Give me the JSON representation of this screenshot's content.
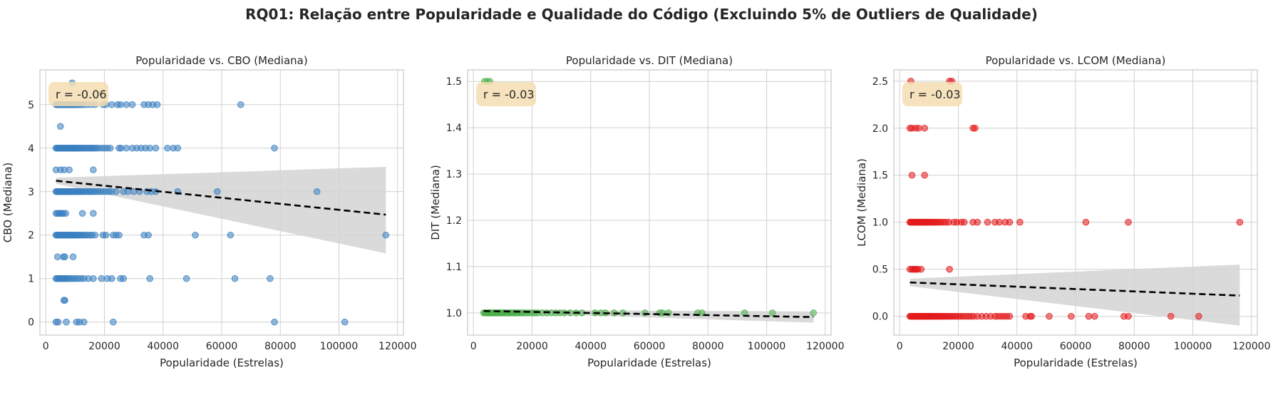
{
  "figure": {
    "suptitle": "RQ01: Relação entre Popularidade e Qualidade do Código (Excluindo 5% de Outliers de Qualidade)"
  },
  "colors": {
    "cbo": "#3a7fc1",
    "dit": "#4daf4a",
    "lcom": "#e41a1c",
    "trend": "#000000",
    "ci_band": "#d3d3d3",
    "annotation_box": "#f5deb3",
    "grid": "#d0d0d0",
    "spine": "#c8c8c8"
  },
  "chart_data": [
    {
      "type": "scatter",
      "title": "Popularidade vs. CBO (Mediana)",
      "xlabel": "Popularidade (Estrelas)",
      "ylabel": "CBO (Mediana)",
      "xlim": [
        -2000,
        122000
      ],
      "ylim": [
        -0.3,
        5.8
      ],
      "xticks": [
        0,
        20000,
        40000,
        60000,
        80000,
        100000,
        120000
      ],
      "yticks": [
        0,
        1,
        2,
        3,
        4,
        5
      ],
      "ytick_labels": [
        "0",
        "1",
        "2",
        "3",
        "4",
        "5"
      ],
      "annotation": "r = -0.06",
      "color": "#3a7fc1",
      "grid": true,
      "trend": {
        "x": [
          3500,
          116000
        ],
        "y": [
          3.25,
          2.47
        ]
      },
      "ci_band": {
        "x": [
          3500,
          116000
        ],
        "upper": [
          3.32,
          3.57
        ],
        "lower": [
          3.18,
          1.58
        ]
      },
      "rows": [
        {
          "y": 5,
          "x": [
            3500,
            3800,
            4100,
            4400,
            4700,
            5000,
            5300,
            5600,
            5900,
            6200,
            6500,
            6800,
            7100,
            7400,
            7700,
            8000,
            8400,
            8800,
            9200,
            9600,
            10000,
            10500,
            11000,
            11600,
            12200,
            13000,
            14200,
            15500,
            16800,
            19500,
            20500,
            22500,
            24500,
            25500,
            27500,
            29500,
            33500,
            35000,
            36500,
            38000,
            66500
          ]
        },
        {
          "y": 5.5,
          "x": [
            9000
          ]
        },
        {
          "y": 4.5,
          "x": [
            5000
          ]
        },
        {
          "y": 4,
          "x": [
            3500,
            3800,
            4100,
            4400,
            4700,
            5000,
            5300,
            5600,
            5900,
            6200,
            6500,
            6800,
            7100,
            7400,
            7700,
            8000,
            8300,
            8600,
            8900,
            9200,
            9500,
            9900,
            10300,
            10700,
            11100,
            11500,
            12000,
            12500,
            13000,
            13600,
            14200,
            14800,
            15400,
            16000,
            16600,
            17200,
            18000,
            19000,
            20000,
            21000,
            22000,
            25000,
            25700,
            27500,
            29500,
            31000,
            32500,
            34000,
            35500,
            37500,
            41500,
            43500,
            45000,
            78000
          ]
        },
        {
          "y": 3.5,
          "x": [
            3500,
            5000,
            6300,
            8000,
            16200
          ]
        },
        {
          "y": 3,
          "x": [
            3500,
            3800,
            4100,
            4400,
            4700,
            5000,
            5300,
            5600,
            5900,
            6200,
            6500,
            6800,
            7100,
            7400,
            7700,
            8000,
            8300,
            8600,
            8900,
            9200,
            9500,
            9800,
            10200,
            10600,
            11000,
            11400,
            11800,
            12300,
            12800,
            13300,
            13900,
            14500,
            15100,
            15700,
            16300,
            17000,
            17800,
            18600,
            19500,
            20500,
            21500,
            22500,
            24000,
            26500,
            28000,
            30000,
            32000,
            34500,
            36000,
            37500,
            45000,
            58500,
            92500
          ]
        },
        {
          "y": 2.5,
          "x": [
            3500,
            4000,
            4500,
            5000,
            5500,
            6000,
            6800,
            12500,
            16200
          ]
        },
        {
          "y": 2,
          "x": [
            3500,
            3800,
            4100,
            4400,
            4700,
            5000,
            5300,
            5600,
            5900,
            6200,
            6500,
            6800,
            7100,
            7400,
            7700,
            8000,
            8300,
            8600,
            8900,
            9200,
            9500,
            9900,
            10300,
            10800,
            11300,
            11800,
            12300,
            12900,
            13500,
            14200,
            15000,
            15800,
            16800,
            19500,
            20500,
            23000,
            24000,
            25000,
            33500,
            35000,
            51000,
            63000,
            116000
          ]
        },
        {
          "y": 1.5,
          "x": [
            4000,
            6000,
            6500,
            9300
          ]
        },
        {
          "y": 1,
          "x": [
            3500,
            3900,
            4300,
            4700,
            5100,
            5500,
            5900,
            6300,
            6800,
            7300,
            7900,
            8600,
            9400,
            10200,
            11000,
            12000,
            13000,
            14500,
            16200,
            19000,
            21000,
            22500,
            25500,
            26500,
            35500,
            48000,
            64500,
            76500
          ]
        },
        {
          "y": 0.5,
          "x": [
            6200,
            6500
          ]
        },
        {
          "y": 0,
          "x": [
            3500,
            4200,
            7000,
            10500,
            11500,
            13000,
            23000,
            78000,
            102000
          ]
        }
      ]
    },
    {
      "type": "scatter",
      "title": "Popularidade vs. DIT (Mediana)",
      "xlabel": "Popularidade (Estrelas)",
      "ylabel": "DIT (Mediana)",
      "xlim": [
        -2000,
        122000
      ],
      "ylim": [
        0.952,
        1.525
      ],
      "xticks": [
        0,
        20000,
        40000,
        60000,
        80000,
        100000,
        120000
      ],
      "yticks": [
        1.0,
        1.1,
        1.2,
        1.3,
        1.4,
        1.5
      ],
      "ytick_labels": [
        "1.0",
        "1.1",
        "1.2",
        "1.3",
        "1.4",
        "1.5"
      ],
      "annotation": "r = -0.03",
      "color": "#4daf4a",
      "grid": true,
      "trend": {
        "x": [
          3500,
          116000
        ],
        "y": [
          1.004,
          0.991
        ]
      },
      "ci_band": {
        "x": [
          3500,
          116000
        ],
        "upper": [
          1.007,
          1.003
        ],
        "lower": [
          1.001,
          0.979
        ]
      },
      "rows": [
        {
          "y": 1.5,
          "x": [
            3800,
            4700,
            5600
          ]
        },
        {
          "y": 1,
          "x": [
            3500,
            3900,
            4300,
            4700,
            5100,
            5500,
            5900,
            6300,
            6700,
            7100,
            7500,
            7900,
            8300,
            8700,
            9100,
            9500,
            10000,
            10500,
            11000,
            11500,
            12000,
            12600,
            13200,
            13800,
            14400,
            15000,
            15700,
            16400,
            17200,
            18000,
            19000,
            20000,
            21000,
            22000,
            23500,
            25000,
            26500,
            28000,
            29500,
            31000,
            33000,
            35000,
            37000,
            41500,
            43500,
            45000,
            48000,
            51000,
            58500,
            63500,
            64500,
            66500,
            76500,
            78000,
            92500,
            102000,
            116000
          ]
        }
      ]
    },
    {
      "type": "scatter",
      "title": "Popularidade vs. LCOM (Mediana)",
      "xlabel": "Popularidade (Estrelas)",
      "ylabel": "LCOM (Mediana)",
      "xlim": [
        -2000,
        122000
      ],
      "ylim": [
        -0.2,
        2.62
      ],
      "xticks": [
        0,
        20000,
        40000,
        60000,
        80000,
        100000,
        120000
      ],
      "yticks": [
        0,
        0.5,
        1,
        1.5,
        2,
        2.5
      ],
      "ytick_labels": [
        "0.0",
        "0.5",
        "1.0",
        "1.5",
        "2.0",
        "2.5"
      ],
      "annotation": "r = -0.03",
      "color": "#e41a1c",
      "grid": true,
      "trend": {
        "x": [
          3500,
          116000
        ],
        "y": [
          0.36,
          0.22
        ]
      },
      "ci_band": {
        "x": [
          3500,
          116000
        ],
        "upper": [
          0.4,
          0.55
        ],
        "lower": [
          0.32,
          -0.1
        ]
      },
      "rows": [
        {
          "y": 2.5,
          "x": [
            3800,
            17000,
            17800
          ]
        },
        {
          "y": 2,
          "x": [
            3500,
            4200,
            5500,
            6500,
            8500,
            25000,
            25700
          ]
        },
        {
          "y": 1.5,
          "x": [
            4200,
            8500
          ]
        },
        {
          "y": 1,
          "x": [
            3500,
            3800,
            4100,
            4400,
            4700,
            5000,
            5300,
            5600,
            5900,
            6200,
            6500,
            6800,
            7100,
            7400,
            7700,
            8000,
            8300,
            8600,
            8900,
            9200,
            9500,
            9900,
            10300,
            10800,
            11300,
            11800,
            12300,
            12900,
            13500,
            14200,
            15000,
            15800,
            16800,
            18500,
            19500,
            21000,
            22000,
            25000,
            26500,
            30000,
            32500,
            34000,
            36000,
            37500,
            41000,
            63500,
            78000,
            116000
          ]
        },
        {
          "y": 0.5,
          "x": [
            3500,
            4200,
            4700,
            5200,
            5700,
            6200,
            7300,
            17000
          ]
        },
        {
          "y": 0,
          "x": [
            3500,
            3800,
            4100,
            4400,
            4700,
            5000,
            5300,
            5600,
            5900,
            6200,
            6500,
            6800,
            7100,
            7400,
            7700,
            8000,
            8300,
            8600,
            8900,
            9200,
            9500,
            9800,
            10100,
            10400,
            10700,
            11000,
            11300,
            11600,
            12000,
            12400,
            12800,
            13200,
            13600,
            14000,
            14500,
            15000,
            15500,
            16000,
            16600,
            17200,
            17800,
            18500,
            19200,
            20000,
            20800,
            21600,
            22500,
            23400,
            24300,
            25200,
            26500,
            28000,
            29500,
            31000,
            32500,
            33500,
            34500,
            35500,
            36500,
            37500,
            43000,
            44500,
            45000,
            51000,
            58500,
            64500,
            66500,
            76500,
            78000,
            92500,
            102000
          ]
        }
      ]
    }
  ]
}
